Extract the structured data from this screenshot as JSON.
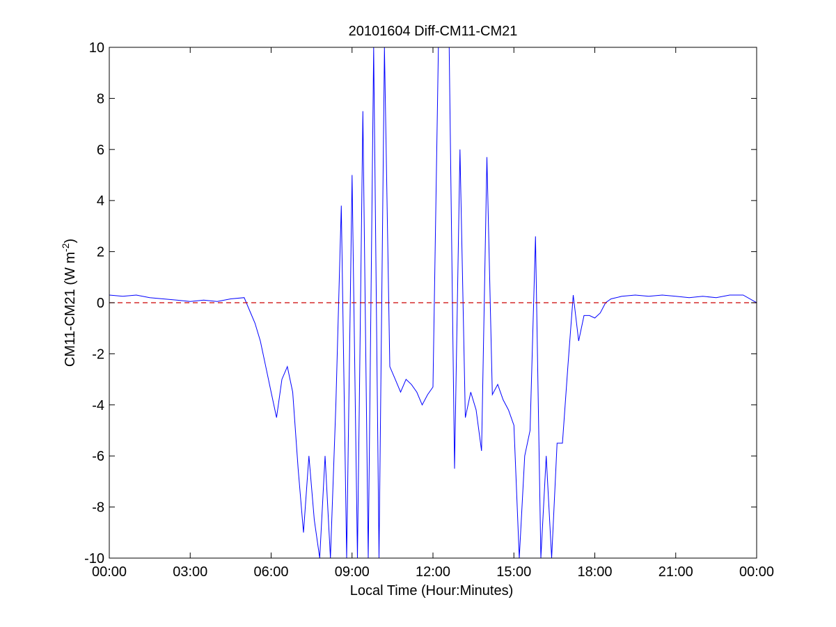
{
  "chart_data": {
    "type": "line",
    "title": "20101604 Diff-CM11-CM21",
    "xlabel": "Local Time (Hour:Minutes)",
    "ylabel": "CM11-CM21 (W m",
    "ylabel_superscript": "-2",
    "ylabel_suffix": ")",
    "x_unit": "hours",
    "xlim": [
      0,
      24
    ],
    "ylim": [
      -10,
      10
    ],
    "x_tick_labels": [
      "00:00",
      "03:00",
      "06:00",
      "09:00",
      "12:00",
      "15:00",
      "18:00",
      "21:00",
      "00:00"
    ],
    "x_ticks": [
      0,
      3,
      6,
      9,
      12,
      15,
      18,
      21,
      24
    ],
    "y_ticks": [
      -10,
      -8,
      -6,
      -4,
      -2,
      0,
      2,
      4,
      6,
      8,
      10
    ],
    "y_tick_labels": [
      "-10",
      "-8",
      "-6",
      "-4",
      "-2",
      "0",
      "2",
      "4",
      "6",
      "8",
      "10"
    ],
    "grid": false,
    "series": [
      {
        "style": "solid",
        "color": "#0000ff",
        "x": [
          0,
          0.5,
          1,
          1.5,
          2,
          2.5,
          3,
          3.5,
          4,
          4.5,
          5,
          5.2,
          5.4,
          5.6,
          5.8,
          6,
          6.2,
          6.4,
          6.6,
          6.8,
          7,
          7.2,
          7.4,
          7.6,
          7.8,
          8,
          8.2,
          8.4,
          8.6,
          8.8,
          9,
          9.2,
          9.4,
          9.6,
          9.8,
          10,
          10.2,
          10.4,
          10.6,
          10.8,
          11,
          11.2,
          11.4,
          11.6,
          11.8,
          12,
          12.2,
          12.4,
          12.6,
          12.8,
          13,
          13.2,
          13.4,
          13.6,
          13.8,
          14,
          14.2,
          14.4,
          14.6,
          14.8,
          15,
          15.2,
          15.4,
          15.6,
          15.8,
          16,
          16.2,
          16.4,
          16.6,
          16.8,
          17,
          17.2,
          17.4,
          17.6,
          17.8,
          18,
          18.2,
          18.4,
          18.6,
          19,
          19.5,
          20,
          20.5,
          21,
          21.5,
          22,
          22.5,
          23,
          23.5,
          24
        ],
        "y": [
          0.3,
          0.25,
          0.3,
          0.2,
          0.15,
          0.1,
          0.05,
          0.1,
          0.05,
          0.15,
          0.2,
          -0.3,
          -0.8,
          -1.5,
          -2.5,
          -3.5,
          -4.5,
          -3.0,
          -2.5,
          -3.5,
          -6.5,
          -9.0,
          -6.0,
          -8.5,
          -10,
          -6.0,
          -10,
          -4.0,
          3.8,
          -10,
          5.0,
          -10,
          7.5,
          -10,
          10,
          -10,
          10,
          -2.5,
          -3.0,
          -3.5,
          -3.0,
          -3.2,
          -3.5,
          -4.0,
          -3.6,
          -3.3,
          10,
          10,
          10,
          -6.5,
          6.0,
          -4.5,
          -3.5,
          -4.2,
          -5.8,
          5.7,
          -3.6,
          -3.2,
          -3.8,
          -4.2,
          -4.8,
          -10,
          -6.0,
          -5.0,
          2.6,
          -10,
          -6.0,
          -10,
          -5.5,
          -5.5,
          -2.5,
          0.3,
          -1.5,
          -0.5,
          -0.5,
          -0.6,
          -0.4,
          0.0,
          0.15,
          0.25,
          0.3,
          0.25,
          0.3,
          0.25,
          0.2,
          0.25,
          0.2,
          0.3,
          0.3,
          0.0
        ]
      }
    ],
    "reference_line": {
      "y": 0,
      "style": "dashed",
      "color": "#cc0000"
    }
  }
}
